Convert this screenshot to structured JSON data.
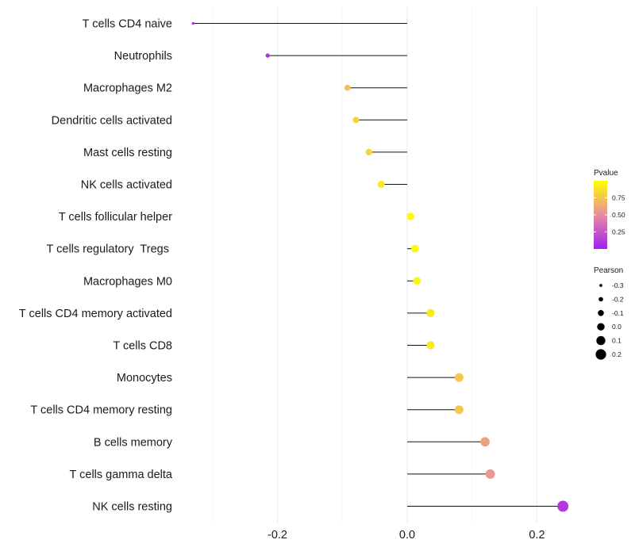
{
  "chart_data": {
    "type": "lollipop",
    "title": "",
    "xlabel": "",
    "ylabel": "",
    "xlim": [
      -0.3,
      0.25
    ],
    "x_ticks": [
      -0.2,
      0.0,
      0.2
    ],
    "x_tick_labels": [
      "-0.2",
      "0.0",
      "0.2"
    ],
    "grid": true,
    "categories": [
      "T cells CD4 naive",
      "Neutrophils",
      "Macrophages M2",
      "Dendritic cells activated",
      "Mast cells resting",
      "NK cells activated",
      "T cells follicular helper",
      "T cells regulatory  Tregs ",
      "Macrophages M0",
      "T cells CD4 memory activated",
      "T cells CD8",
      "Monocytes",
      "T cells CD4 memory resting",
      "B cells memory",
      "T cells gamma delta",
      "NK cells resting"
    ],
    "pearson": [
      -0.33,
      -0.215,
      -0.092,
      -0.079,
      -0.059,
      -0.04,
      0.005,
      0.012,
      0.015,
      0.036,
      0.036,
      0.08,
      0.08,
      0.12,
      0.128,
      0.24
    ],
    "pvalue": [
      0.02,
      0.1,
      0.72,
      0.8,
      0.82,
      0.9,
      0.99,
      0.97,
      0.96,
      0.9,
      0.9,
      0.76,
      0.76,
      0.6,
      0.55,
      0.12
    ],
    "color_legend": {
      "title": "Pvalue",
      "ticks": [
        0.25,
        0.5,
        0.75
      ],
      "tick_labels": [
        "0.25",
        "0.50",
        "0.75"
      ],
      "range": [
        0.0,
        1.0
      ],
      "low_color": "#a020f0",
      "mid_color": "#e88ca0",
      "high_color": "#ffff00"
    },
    "size_legend": {
      "title": "Pearson",
      "values": [
        -0.3,
        -0.2,
        -0.1,
        0.0,
        0.1,
        0.2
      ],
      "labels": [
        "-0.3",
        "-0.2",
        "-0.1",
        "0.0",
        "0.1",
        "0.2"
      ]
    },
    "legend_position": "right"
  }
}
